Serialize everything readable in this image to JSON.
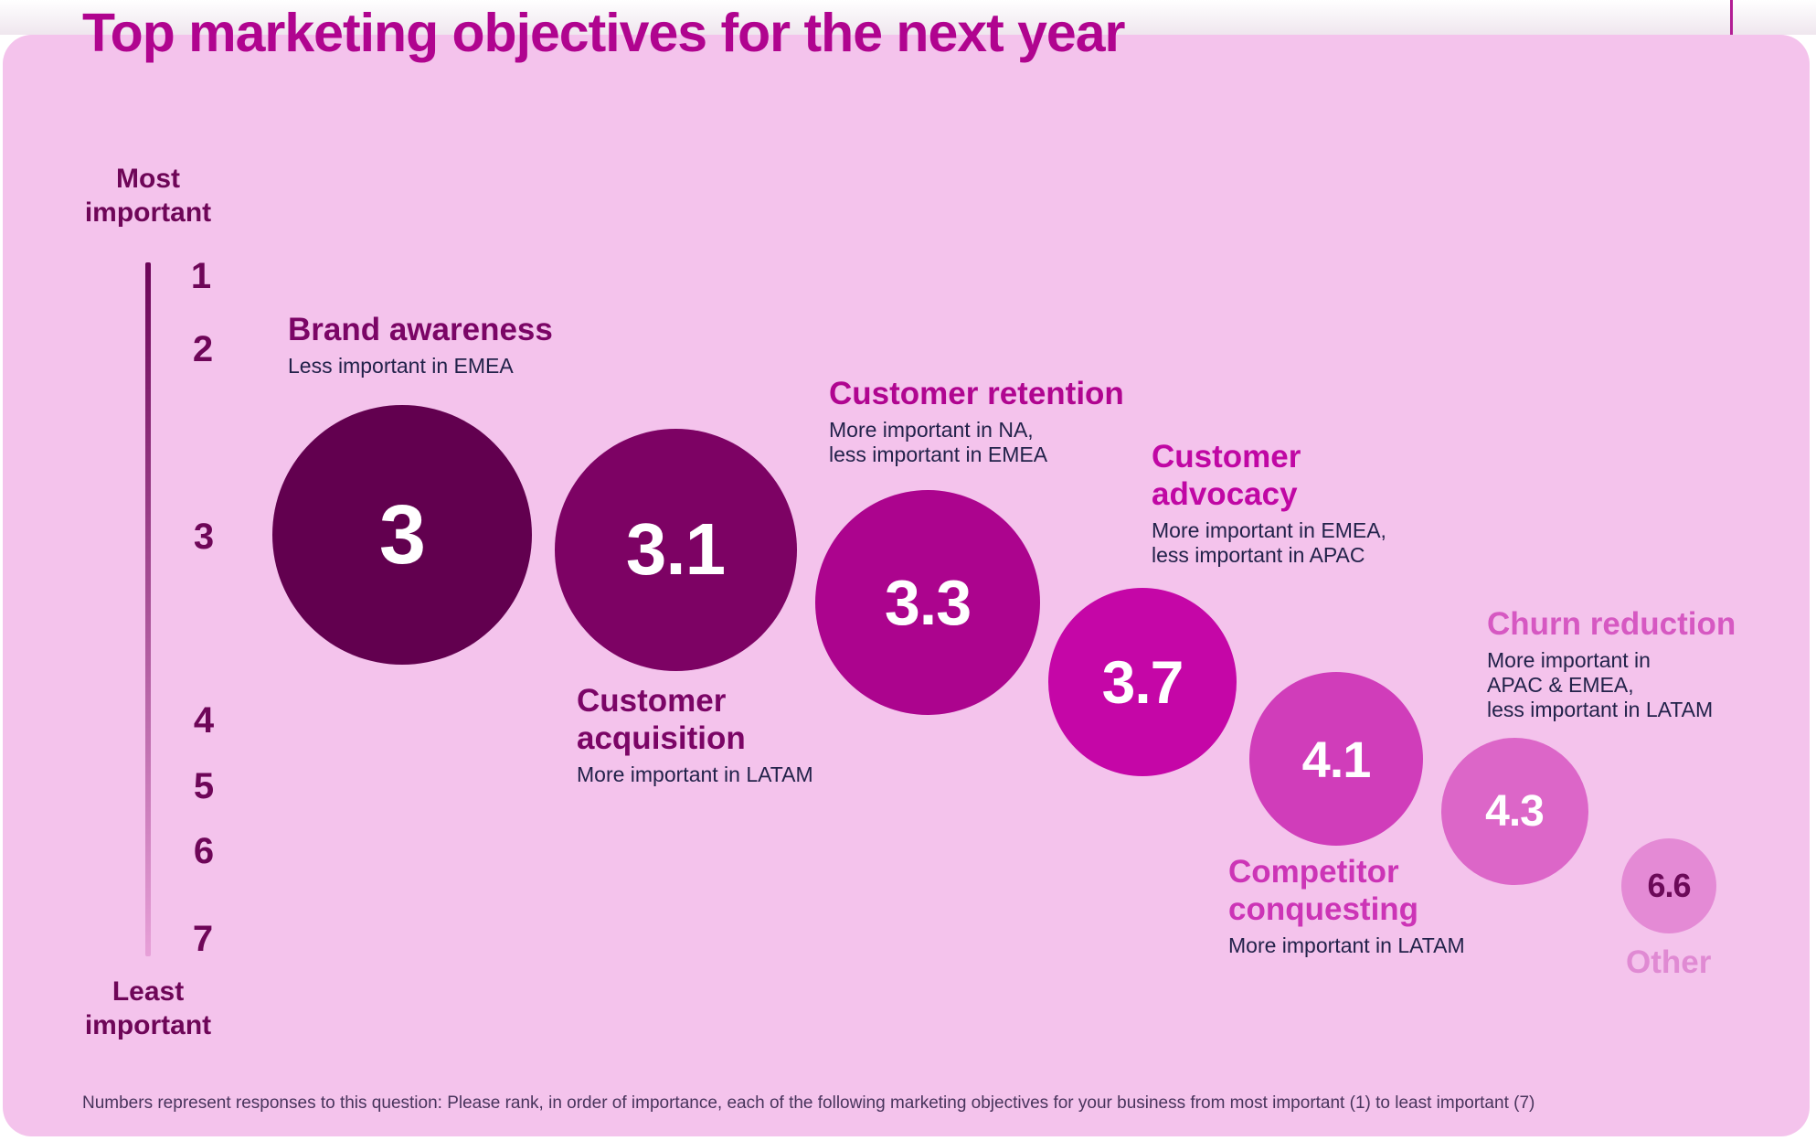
{
  "page": {
    "title": "Top marketing objectives for the next year",
    "footnote": "Numbers represent responses to this question: Please rank, in order of importance, each of the following marketing objectives for your business from most important (1) to least important (7)"
  },
  "chart_data": {
    "type": "bubble",
    "title": "Top marketing objectives for the next year",
    "axis": {
      "orientation": "vertical",
      "range": [
        1,
        7
      ],
      "ticks": [
        "1",
        "2",
        "3",
        "4",
        "5",
        "6",
        "7"
      ],
      "top_label": [
        "Most",
        "important"
      ],
      "bottom_label": [
        "Least",
        "important"
      ]
    },
    "series": [
      {
        "name": "Brand awareness",
        "value": 3,
        "display": "3",
        "note": "Less important in EMEA",
        "color": "#62004f"
      },
      {
        "name": "Customer acquisition",
        "value": 3.1,
        "display": "3.1",
        "note": "More important in LATAM",
        "color": "#7d0264"
      },
      {
        "name": "Customer retention",
        "value": 3.3,
        "display": "3.3",
        "note": "More important in NA,\nless important in EMEA",
        "color": "#ac048e"
      },
      {
        "name": "Customer advocacy",
        "value": 3.7,
        "display": "3.7",
        "note": "More important in EMEA,\nless important in APAC",
        "color": "#c506a7"
      },
      {
        "name": "Competitor conquesting",
        "value": 4.1,
        "display": "4.1",
        "note": "More important in LATAM",
        "color": "#d03dba"
      },
      {
        "name": "Churn reduction",
        "value": 4.3,
        "display": "4.3",
        "note": "More important in\nAPAC & EMEA,\nless important in LATAM",
        "color": "#dc66c8"
      },
      {
        "name": "Other",
        "value": 6.6,
        "display": "6.6",
        "note": "",
        "color": "#e48ad5"
      }
    ]
  }
}
